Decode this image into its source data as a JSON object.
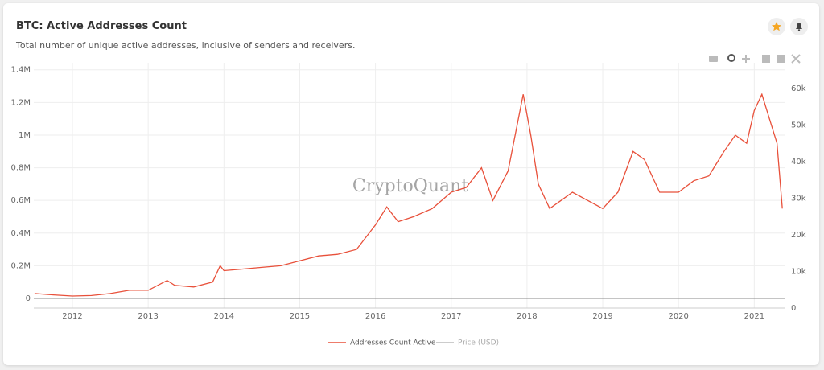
{
  "chart_data": {
    "type": "line",
    "title": "BTC: Active Addresses Count",
    "subtitle": "Total number of unique active addresses, inclusive of senders and receivers.",
    "watermark": "CryptoQuant",
    "x": [
      2011.5,
      2011.75,
      2012.0,
      2012.25,
      2012.5,
      2012.75,
      2013.0,
      2013.25,
      2013.35,
      2013.6,
      2013.85,
      2013.95,
      2014.0,
      2014.25,
      2014.5,
      2014.75,
      2015.0,
      2015.25,
      2015.5,
      2015.75,
      2016.0,
      2016.15,
      2016.3,
      2016.5,
      2016.75,
      2017.0,
      2017.2,
      2017.4,
      2017.55,
      2017.75,
      2017.95,
      2018.05,
      2018.15,
      2018.3,
      2018.45,
      2018.6,
      2018.8,
      2019.0,
      2019.2,
      2019.4,
      2019.55,
      2019.75,
      2020.0,
      2020.2,
      2020.4,
      2020.6,
      2020.75,
      2020.9,
      2021.0,
      2021.1,
      2021.2,
      2021.3,
      2021.37
    ],
    "series": [
      {
        "name": "Addresses Count Active",
        "color": "#e8503a",
        "values": [
          30000,
          22000,
          15000,
          18000,
          30000,
          50000,
          50000,
          110000,
          80000,
          70000,
          100000,
          200000,
          170000,
          180000,
          190000,
          200000,
          230000,
          260000,
          270000,
          300000,
          450000,
          560000,
          470000,
          500000,
          550000,
          650000,
          680000,
          800000,
          600000,
          780000,
          1250000,
          1000000,
          700000,
          550000,
          600000,
          650000,
          600000,
          550000,
          650000,
          900000,
          850000,
          650000,
          650000,
          720000,
          750000,
          900000,
          1000000,
          950000,
          1150000,
          1250000,
          1100000,
          950000,
          550000
        ]
      },
      {
        "name": "Price (USD)",
        "color": "#999999",
        "axis": "y2",
        "hidden": true,
        "values": [
          null,
          null,
          null,
          null,
          null,
          null,
          null,
          null,
          null,
          null,
          null,
          null,
          null,
          null,
          null,
          null,
          null,
          null,
          null,
          null,
          null,
          null,
          null,
          null,
          null,
          null,
          null,
          null,
          null,
          null,
          null,
          null,
          null,
          null,
          null,
          null,
          null,
          null,
          null,
          null,
          null,
          null,
          null,
          null,
          null,
          null,
          null,
          null,
          null,
          null,
          null,
          null,
          null
        ]
      }
    ],
    "xlim": [
      2011.49,
      2021.4
    ],
    "xticks": [
      2012,
      2013,
      2014,
      2015,
      2016,
      2017,
      2018,
      2019,
      2020,
      2021
    ],
    "ylim": [
      -59000,
      1443000
    ],
    "yticks": [
      0,
      {
        "value": 200000,
        "label": "0.2M"
      },
      {
        "value": 400000,
        "label": "0.4M"
      },
      {
        "value": 600000,
        "label": "0.6M"
      },
      {
        "value": 800000,
        "label": "0.8M"
      },
      {
        "value": 1000000,
        "label": "1M"
      },
      {
        "value": 1200000,
        "label": "1.2M"
      },
      {
        "value": 1400000,
        "label": "1.4M"
      }
    ],
    "y2lim": [
      0,
      67000
    ],
    "y2ticks": [
      0,
      {
        "value": 10000,
        "label": "10k"
      },
      {
        "value": 20000,
        "label": "20k"
      },
      {
        "value": 30000,
        "label": "30k"
      },
      {
        "value": 40000,
        "label": "40k"
      },
      {
        "value": 50000,
        "label": "50k"
      },
      {
        "value": 60000,
        "label": "60k"
      }
    ],
    "grid": true
  }
}
